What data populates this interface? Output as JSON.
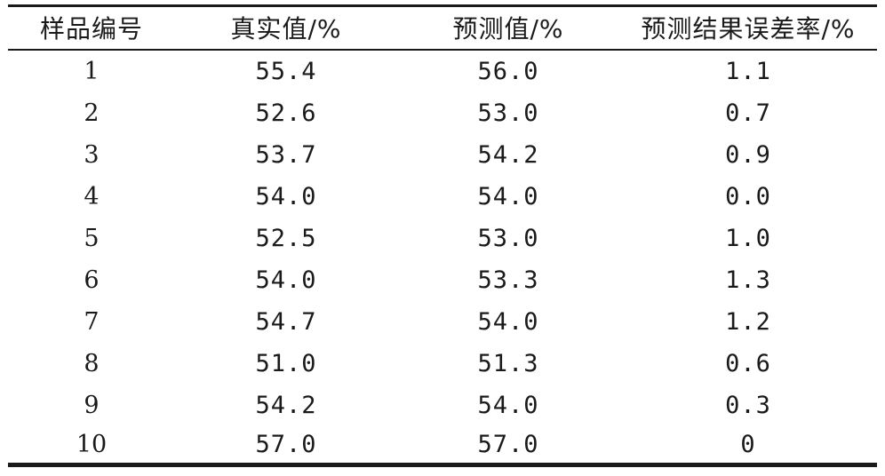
{
  "table": {
    "headers": [
      "样品编号",
      "真实值/%",
      "预测值/%",
      "预测结果误差率/%"
    ],
    "rows": [
      [
        "1",
        "55.4",
        "56.0",
        "1.1"
      ],
      [
        "2",
        "52.6",
        "53.0",
        "0.7"
      ],
      [
        "3",
        "53.7",
        "54.2",
        "0.9"
      ],
      [
        "4",
        "54.0",
        "54.0",
        "0.0"
      ],
      [
        "5",
        "52.5",
        "53.0",
        "1.0"
      ],
      [
        "6",
        "54.0",
        "53.3",
        "1.3"
      ],
      [
        "7",
        "54.7",
        "54.0",
        "1.2"
      ],
      [
        "8",
        "51.0",
        "51.3",
        "0.6"
      ],
      [
        "9",
        "54.2",
        "54.0",
        "0.3"
      ],
      [
        "10",
        "57.0",
        "57.0",
        "0"
      ]
    ]
  }
}
